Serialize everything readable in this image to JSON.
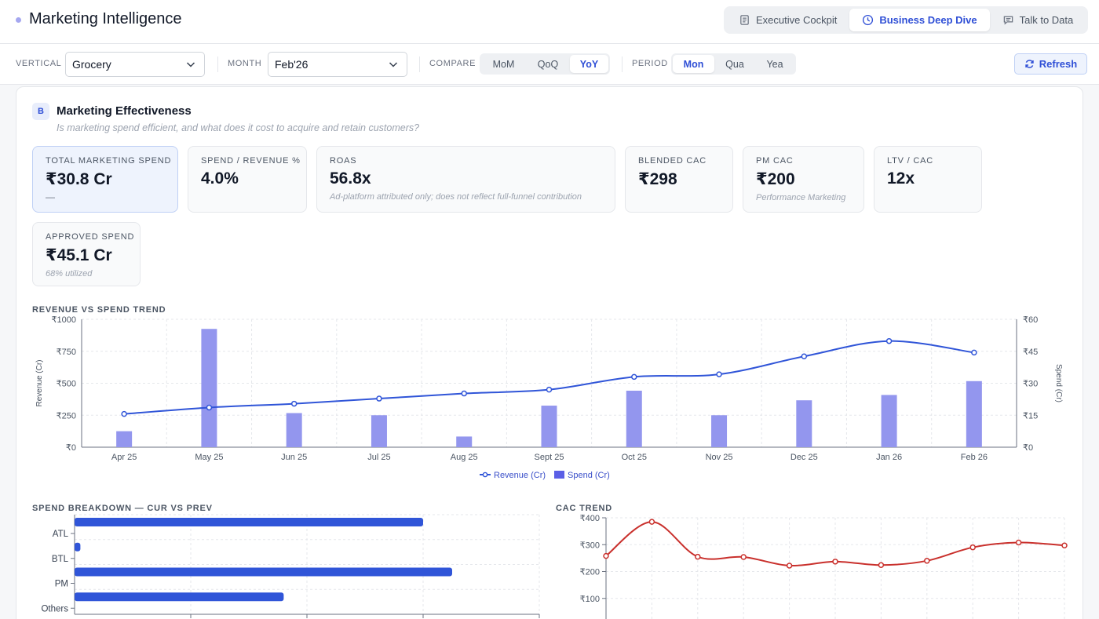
{
  "header": {
    "title": "Marketing Intelligence",
    "tabs": [
      {
        "label": "Executive Cockpit",
        "icon": "document-icon",
        "active": false
      },
      {
        "label": "Business Deep Dive",
        "icon": "clock-icon",
        "active": true
      },
      {
        "label": "Talk to Data",
        "icon": "chat-icon",
        "active": false
      }
    ]
  },
  "filters": {
    "vertical_label": "VERTICAL",
    "vertical_value": "Grocery",
    "month_label": "MONTH",
    "month_value": "Feb'26",
    "compare_label": "COMPARE",
    "compare_options": [
      "MoM",
      "QoQ",
      "YoY"
    ],
    "compare_selected": "YoY",
    "period_label": "PERIOD",
    "period_options": [
      "Mon",
      "Qua",
      "Yea"
    ],
    "period_selected": "Mon",
    "refresh_label": "Refresh"
  },
  "section": {
    "badge": "B",
    "title": "Marketing Effectiveness",
    "subtitle": "Is marketing spend efficient, and what does it cost to acquire and retain customers?"
  },
  "kpis": [
    {
      "label": "TOTAL MARKETING SPEND",
      "value": "₹30.8 Cr",
      "dash": "—"
    },
    {
      "label": "SPEND / REVENUE %",
      "value": "4.0%"
    },
    {
      "label": "ROAS",
      "value": "56.8x",
      "note": "Ad-platform attributed only; does not reflect full-funnel contribution"
    },
    {
      "label": "BLENDED CAC",
      "value": "₹298"
    },
    {
      "label": "PM CAC",
      "value": "₹200",
      "note": "Performance Marketing"
    },
    {
      "label": "LTV / CAC",
      "value": "12x"
    },
    {
      "label": "APPROVED SPEND",
      "value": "₹45.1 Cr",
      "note": "68% utilized"
    }
  ],
  "colors": {
    "accent": "#2f4fd6",
    "revenue_line": "#3055d8",
    "spend_bar": "#9396ee",
    "spend_bar_legend": "#5b5fe6",
    "breakdown_bar": "#3055d8",
    "cac_line": "#c9302c"
  },
  "chart_data": [
    {
      "type": "bar+line",
      "title": "REVENUE VS SPEND TREND",
      "categories": [
        "Apr 25",
        "May 25",
        "Jun 25",
        "Jul 25",
        "Aug 25",
        "Sept 25",
        "Oct 25",
        "Nov 25",
        "Dec 25",
        "Jan 26",
        "Feb 26"
      ],
      "series": [
        {
          "name": "Revenue (Cr)",
          "kind": "line",
          "axis": "left",
          "values": [
            260,
            310,
            340,
            380,
            420,
            450,
            550,
            570,
            710,
            830,
            740
          ]
        },
        {
          "name": "Spend (Cr)",
          "kind": "bar",
          "axis": "right",
          "values": [
            7.5,
            55.5,
            16,
            15,
            5,
            19.5,
            26.5,
            15,
            22,
            24.5,
            31
          ]
        }
      ],
      "ylabel": "Revenue (Cr)",
      "y2label": "Spend (Cr)",
      "ylim": [
        0,
        1000
      ],
      "y2lim": [
        0,
        60
      ],
      "yticks": [
        "₹0",
        "₹250",
        "₹500",
        "₹750",
        "₹1000"
      ],
      "y2ticks": [
        "₹0",
        "₹15",
        "₹30",
        "₹45",
        "₹60"
      ],
      "grid": true,
      "legend": "bottom-center"
    },
    {
      "type": "bar",
      "orientation": "horizontal",
      "title": "SPEND BREAKDOWN — CUR VS PREV",
      "categories": [
        "ATL",
        "BTL",
        "PM",
        "Others"
      ],
      "values": [
        12,
        0.2,
        13,
        7.2
      ],
      "xlim": [
        0,
        16
      ],
      "grid": true
    },
    {
      "type": "line",
      "title": "CAC TREND",
      "values": [
        258,
        385,
        255,
        254,
        222,
        237,
        224,
        240,
        290,
        308,
        297
      ],
      "ylim": [
        0,
        400
      ],
      "yticks": [
        "₹100",
        "₹200",
        "₹300",
        "₹400"
      ],
      "grid": true
    }
  ]
}
